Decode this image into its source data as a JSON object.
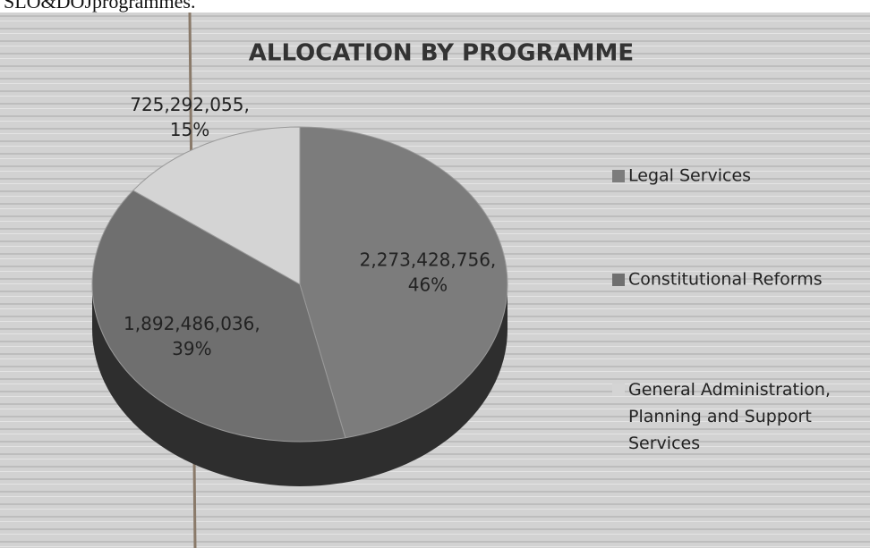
{
  "caption": "SLO&DOJprogrammes.",
  "chart_data": {
    "type": "pie",
    "title": "ALLOCATION BY PROGRAMME",
    "categories": [
      "Legal Services",
      "Constitutional Reforms",
      "General Administration, Planning and Support Services"
    ],
    "values": [
      2273428756,
      1892486036,
      725292055
    ],
    "value_labels": [
      "2,273,428,756,",
      "1,892,486,036,",
      "725,292,055,"
    ],
    "percent_labels": [
      "46%",
      "39%",
      "15%"
    ],
    "colors": [
      "#7c7c7c",
      "#6f6f6f",
      "#d4d4d4"
    ],
    "legend": "right"
  }
}
